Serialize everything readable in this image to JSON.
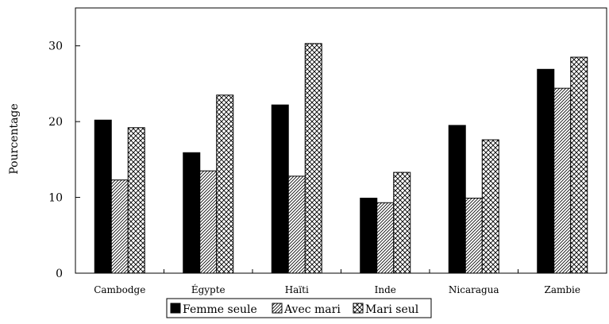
{
  "chart_data": {
    "type": "bar",
    "title": "",
    "xlabel": "",
    "ylabel": "Pourcentage",
    "ylim": [
      0,
      35
    ],
    "yticks": [
      0,
      10,
      20,
      30
    ],
    "grid": false,
    "legend_position": "bottom",
    "categories": [
      "Cambodge",
      "Égypte",
      "Haïti",
      "Inde",
      "Nicaragua",
      "Zambie"
    ],
    "series": [
      {
        "name": "Femme seule",
        "values": [
          20.2,
          15.9,
          22.2,
          9.9,
          19.5,
          26.9
        ],
        "fill": "solid",
        "color": "#000000"
      },
      {
        "name": "Avec mari",
        "values": [
          12.3,
          13.5,
          12.8,
          9.3,
          9.9,
          24.4
        ],
        "fill": "diagonal-hatch",
        "color": "#000000"
      },
      {
        "name": "Mari seul",
        "values": [
          19.2,
          23.5,
          30.3,
          13.3,
          17.6,
          28.5
        ],
        "fill": "crosshatch",
        "color": "#000000"
      }
    ]
  }
}
